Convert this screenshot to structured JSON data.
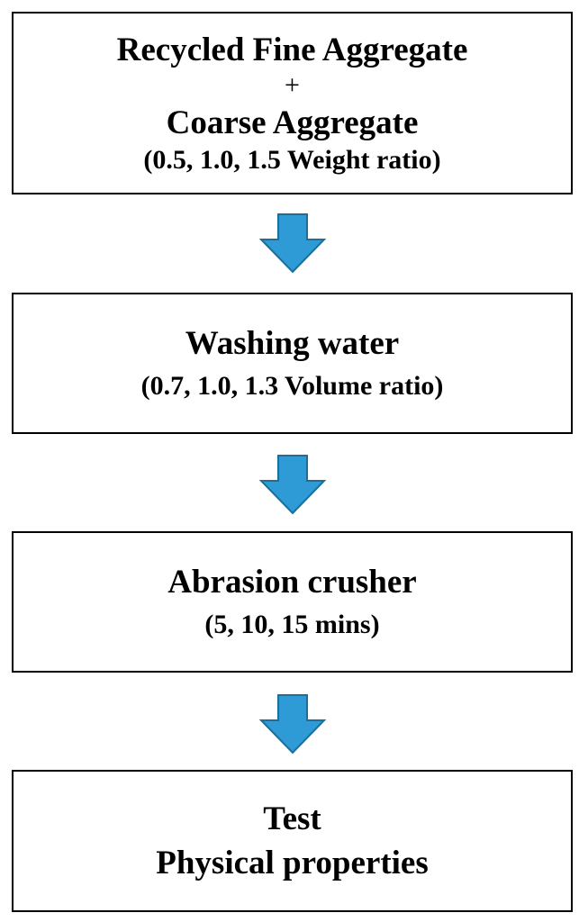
{
  "arrow_color": "#2e9bd6",
  "arrow_outline": "#1a6f9c",
  "steps": [
    {
      "title": "Recycled Fine Aggregate",
      "connector": "+",
      "subtitle": "Coarse Aggregate",
      "detail": "(0.5, 1.0, 1.5 Weight ratio)"
    },
    {
      "title": "Washing water",
      "detail": "(0.7, 1.0, 1.3 Volume ratio)"
    },
    {
      "title": "Abrasion crusher",
      "detail": "(5, 10, 15 mins)"
    },
    {
      "title": "Test",
      "subtitle": "Physical properties"
    }
  ]
}
